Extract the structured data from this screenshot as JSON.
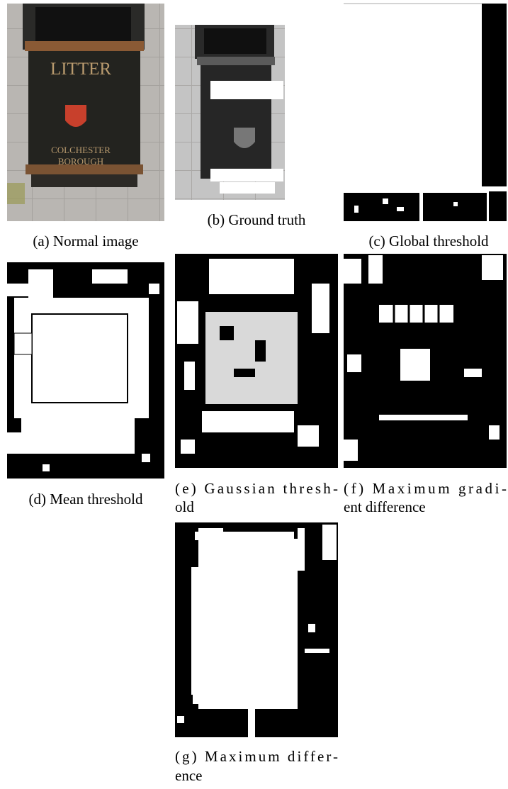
{
  "panels": [
    {
      "caption_lines": [
        "(a) Normal image"
      ],
      "image_text": [
        "LITTER",
        "COLCHESTER",
        "BOROUGH"
      ]
    },
    {
      "caption_lines": [
        "(b) Ground truth"
      ]
    },
    {
      "caption_lines": [
        "(c) Global threshold"
      ]
    },
    {
      "caption_lines": [
        "(d) Mean threshold"
      ]
    },
    {
      "caption_lines": [
        "(e) Gaussian thresh-",
        "old"
      ]
    },
    {
      "caption_lines": [
        "(f) Maximum gradi-",
        "ent difference"
      ]
    },
    {
      "caption_lines": [
        "(g) Maximum differ-",
        "ence"
      ]
    }
  ]
}
